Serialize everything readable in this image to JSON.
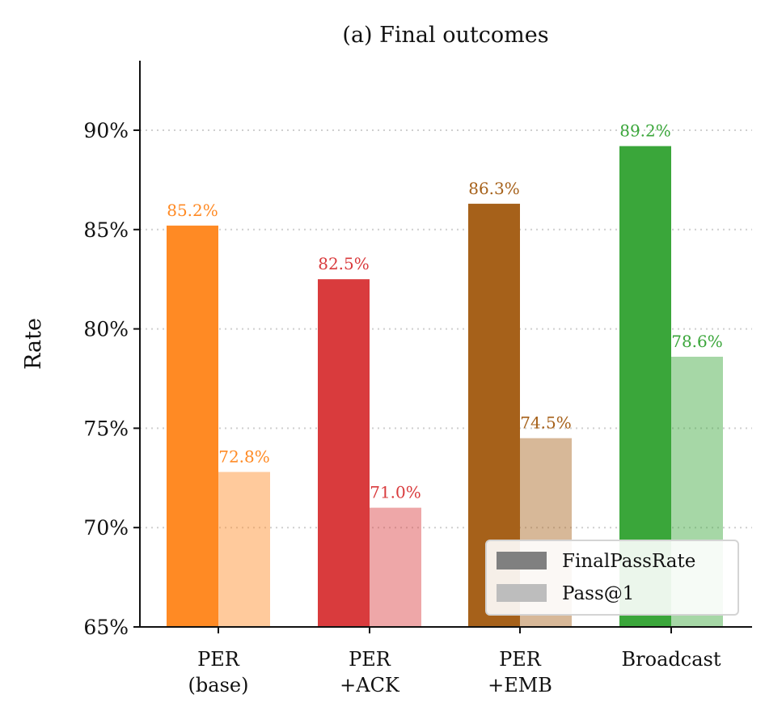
{
  "chart_data": {
    "type": "bar",
    "title": "(a) Final outcomes",
    "xlabel": "",
    "ylabel": "Rate",
    "ylim": [
      65,
      93.5
    ],
    "yticks": [
      65,
      70,
      75,
      80,
      85,
      90
    ],
    "ytick_labels": [
      "65%",
      "70%",
      "75%",
      "80%",
      "85%",
      "90%"
    ],
    "grid": "horizontal dotted",
    "categories": [
      [
        "PER",
        "(base)"
      ],
      [
        "PER",
        "+ACK"
      ],
      [
        "PER",
        "+EMB"
      ],
      [
        "Broadcast"
      ]
    ],
    "category_colors": [
      "#ff8a24",
      "#d93b3d",
      "#a6611a",
      "#3aa63a"
    ],
    "series": [
      {
        "name": "FinalPassRate",
        "values": [
          85.2,
          82.5,
          86.3,
          89.2
        ],
        "labels": [
          "85.2%",
          "82.5%",
          "86.3%",
          "89.2%"
        ],
        "opacity": 1.0
      },
      {
        "name": "Pass@1",
        "values": [
          72.8,
          71.0,
          74.5,
          78.6
        ],
        "labels": [
          "72.8%",
          "71.0%",
          "74.5%",
          "78.6%"
        ],
        "opacity": 0.45
      }
    ],
    "legend": {
      "placement": "lower-right",
      "entries": [
        {
          "name": "FinalPassRate",
          "color": "#808080"
        },
        {
          "name": "Pass@1",
          "color": "#bdbdbd"
        }
      ]
    }
  }
}
